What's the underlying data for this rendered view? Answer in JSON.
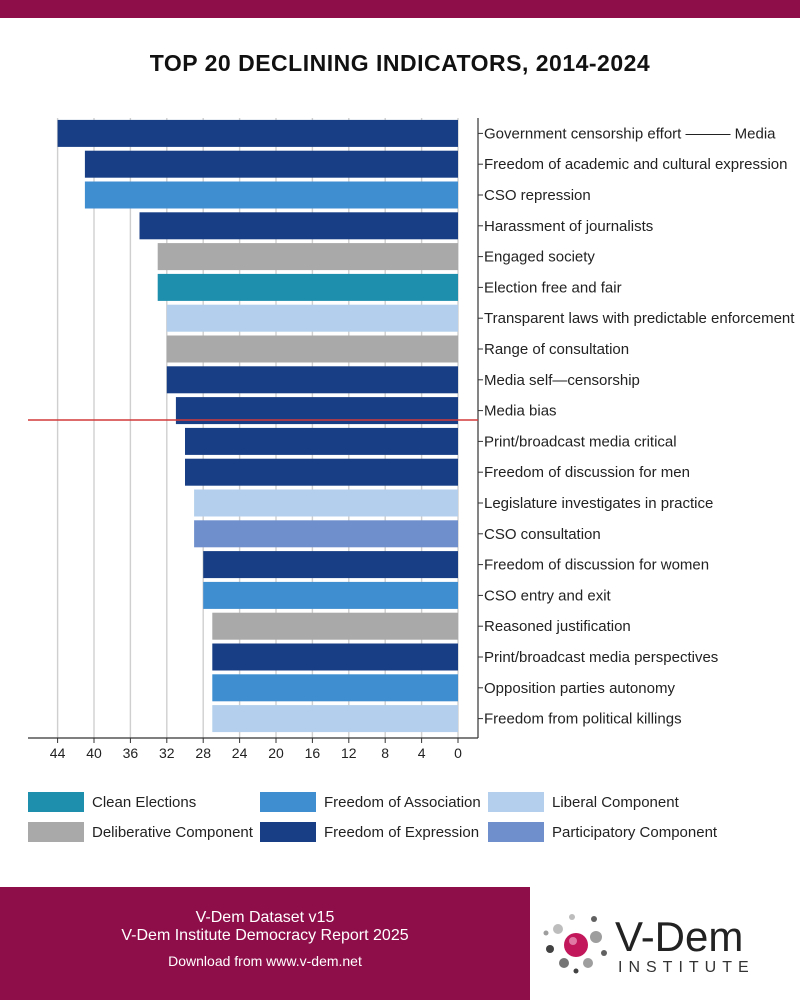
{
  "title": "TOP 20 DECLINING INDICATORS, 2014-2024",
  "colors": {
    "brand": "#8e0e4a",
    "Clean Elections": "#1f8fae",
    "Deliberative Component": "#a9a9a9",
    "Freedom of Association": "#3f8ed0",
    "Freedom of Expression": "#183f85",
    "Liberal Component": "#b3cfed",
    "Participatory Component": "#6f8fcc",
    "reference_line": "#d33a3a"
  },
  "chart_data": {
    "type": "bar",
    "orientation": "horizontal",
    "x_reversed": true,
    "xlim": [
      0,
      46
    ],
    "xticks": [
      44,
      40,
      36,
      32,
      28,
      24,
      20,
      16,
      12,
      8,
      4,
      0
    ],
    "categories": [
      "Government censorship effort ——— Media",
      "Freedom of academic and cultural expression",
      "CSO repression",
      "Harassment of journalists",
      "Engaged society",
      "Election free and fair",
      "Transparent laws with predictable enforcement",
      "Range of consultation",
      "Media self—censorship",
      "Media bias",
      "Print/broadcast media critical",
      "Freedom of discussion for men",
      "Legislature investigates in practice",
      "CSO consultation",
      "Freedom of discussion for women",
      "CSO entry and exit",
      "Reasoned justification",
      "Print/broadcast media perspectives",
      "Opposition parties autonomy",
      "Freedom from political killings"
    ],
    "values": [
      44,
      41,
      41,
      35,
      33,
      33,
      32,
      32,
      32,
      31,
      30,
      30,
      29,
      29,
      28,
      28,
      27,
      27,
      27,
      27
    ],
    "groups": [
      "Freedom of Expression",
      "Freedom of Expression",
      "Freedom of Association",
      "Freedom of Expression",
      "Deliberative Component",
      "Clean Elections",
      "Liberal Component",
      "Deliberative Component",
      "Freedom of Expression",
      "Freedom of Expression",
      "Freedom of Expression",
      "Freedom of Expression",
      "Liberal Component",
      "Participatory Component",
      "Freedom of Expression",
      "Freedom of Association",
      "Deliberative Component",
      "Freedom of Expression",
      "Freedom of Association",
      "Liberal Component"
    ],
    "reference_line_after_index": 9,
    "legend": [
      "Clean Elections",
      "Deliberative Component",
      "Freedom of Association",
      "Freedom of Expression",
      "Liberal Component",
      "Participatory Component"
    ]
  },
  "footer": {
    "line1": "V-Dem Dataset v15",
    "line2": "V-Dem Institute Democracy Report 2025",
    "line3": "Download from www.v-dem.net"
  },
  "logo": {
    "main": "V-Dem",
    "sub": "INSTITUTE"
  }
}
